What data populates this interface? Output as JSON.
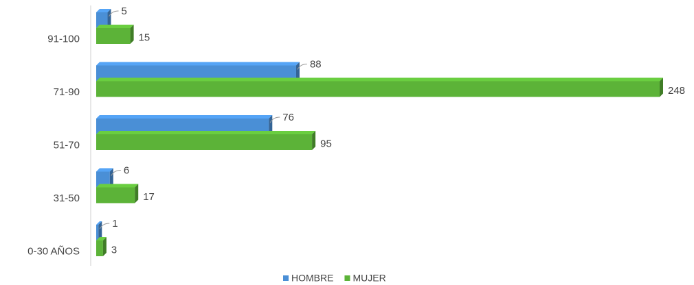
{
  "chart_data": {
    "type": "bar",
    "orientation": "horizontal",
    "categories": [
      "91-100",
      "71-90",
      "51-70",
      "31-50",
      "0-30 AÑOS"
    ],
    "series": [
      {
        "name": "HOMBRE",
        "color": "#4a8fd6",
        "values": [
          5,
          88,
          76,
          6,
          1
        ]
      },
      {
        "name": "MUJER",
        "color": "#5cb338",
        "values": [
          15,
          248,
          95,
          17,
          3
        ]
      }
    ],
    "legend": "bottom"
  }
}
